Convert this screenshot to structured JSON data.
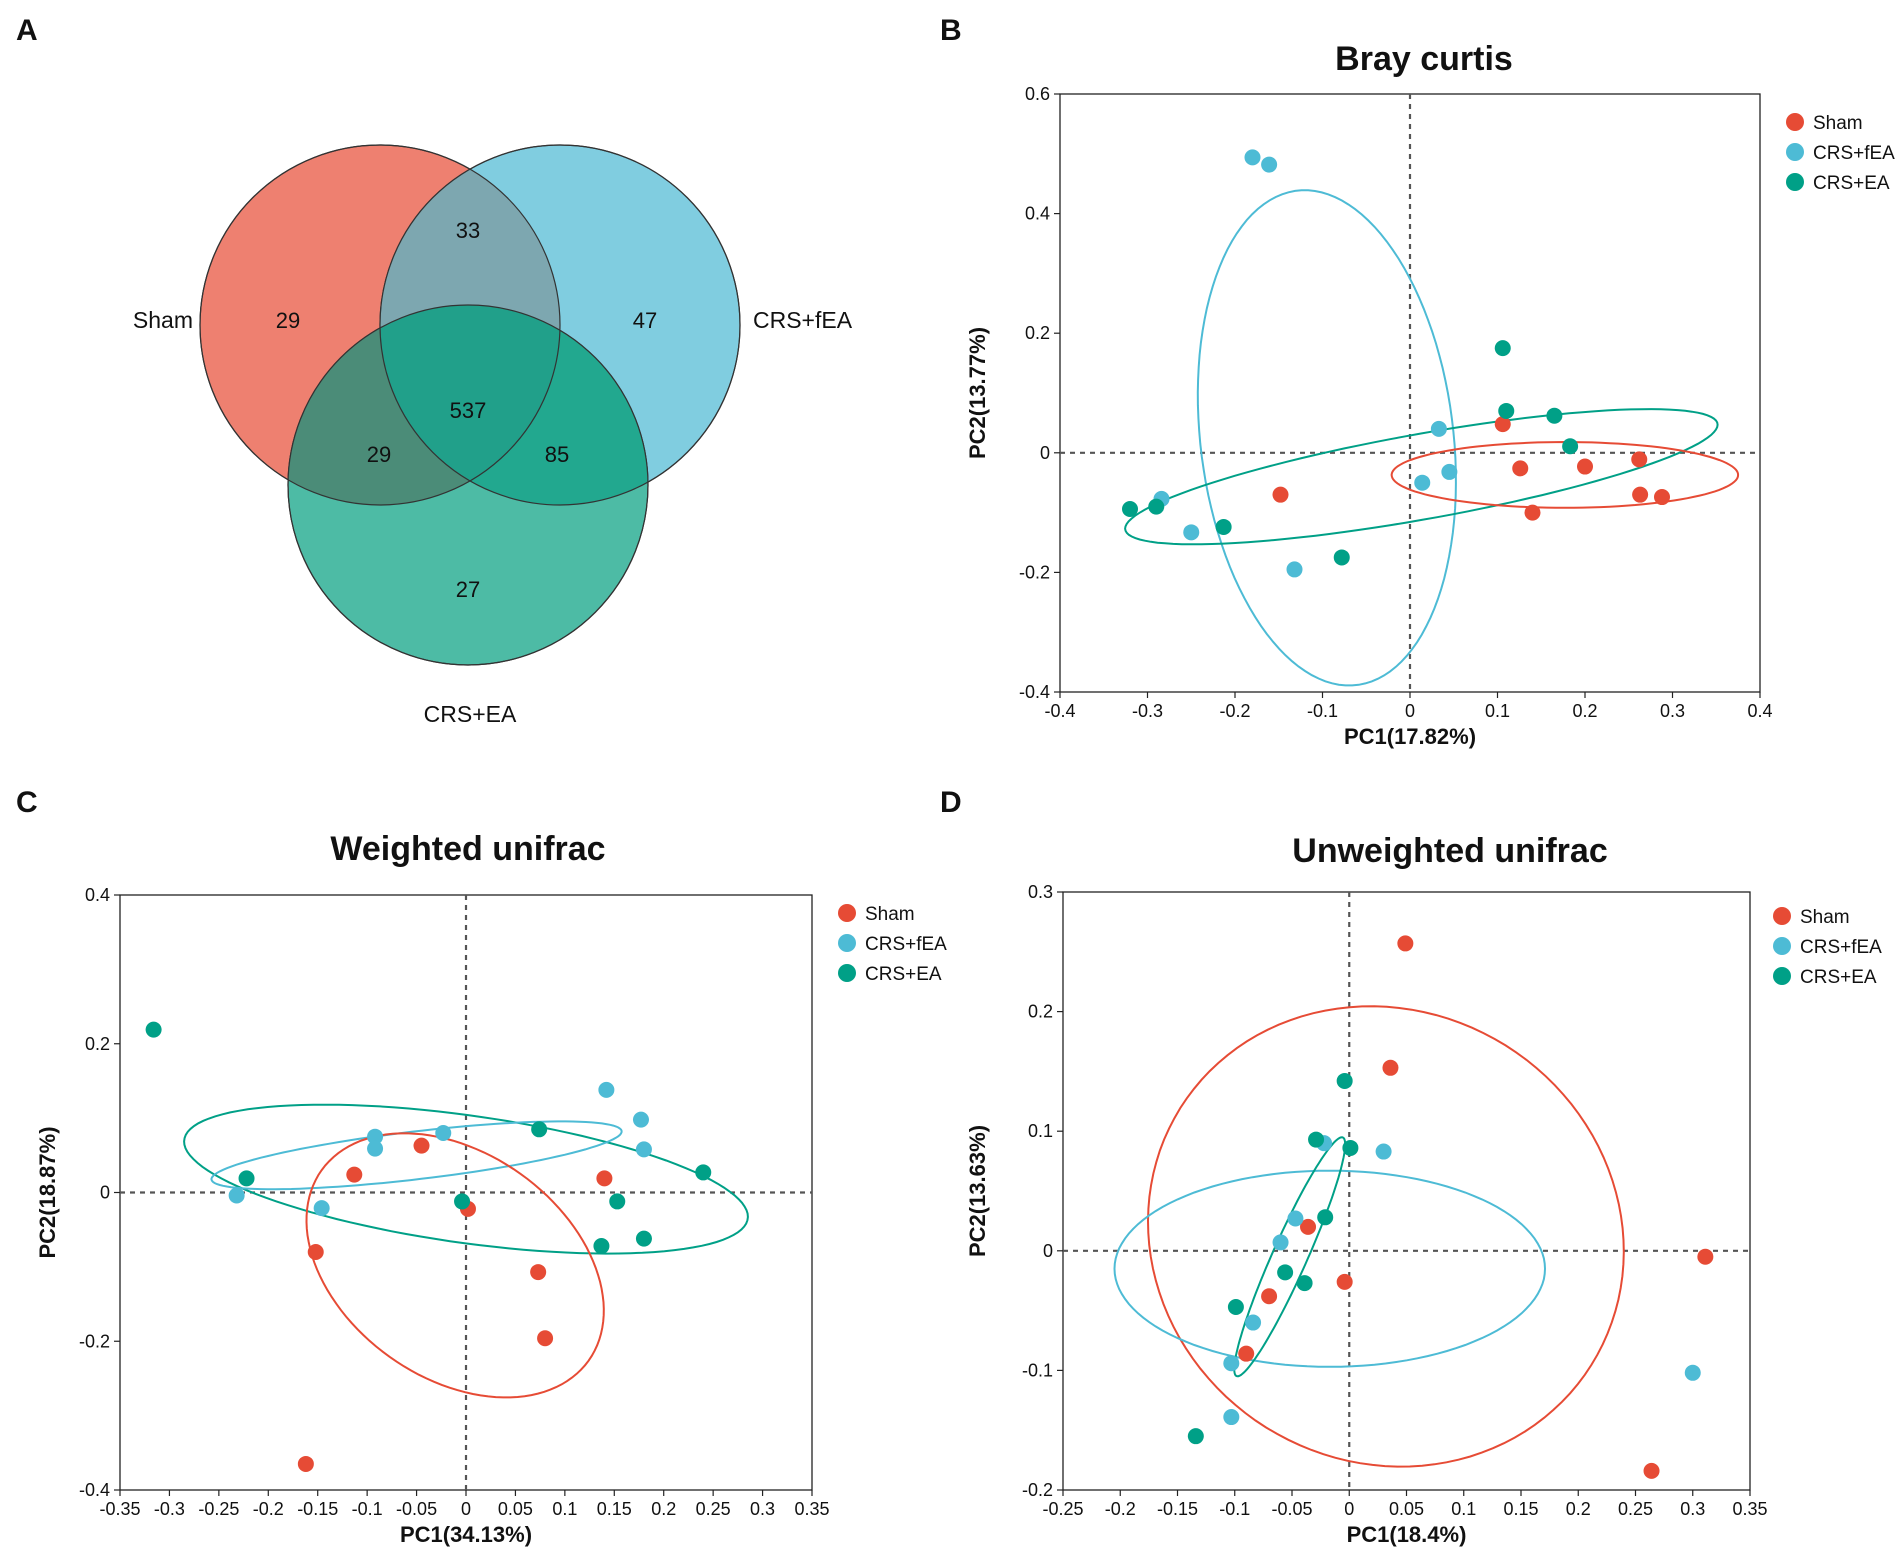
{
  "panels": {
    "a": "A",
    "b": "B",
    "c": "C",
    "d": "D"
  },
  "colors": {
    "sham": "#e64b35",
    "crs_fea": "#4dbbd5",
    "crs_ea": "#00a087",
    "venn_sham": "#ee8070",
    "venn_fea": "#80cde0",
    "venn_ea": "#4dbba5"
  },
  "venn": {
    "sets": {
      "sham": "Sham",
      "fea": "CRS+fEA",
      "ea": "CRS+EA"
    },
    "counts": {
      "sham_only": "29",
      "fea_only": "47",
      "ea_only": "27",
      "sham_fea": "33",
      "sham_ea": "29",
      "fea_ea": "85",
      "all": "537"
    }
  },
  "chart_data": [
    {
      "id": "bray",
      "type": "scatter",
      "title": "Bray curtis",
      "xlabel": "PC1(17.82%)",
      "ylabel": "PC2(13.77%)",
      "xlim": [
        -0.4,
        0.4
      ],
      "ylim": [
        -0.4,
        0.6
      ],
      "xticks": [
        "-0.4",
        "-0.3",
        "-0.2",
        "-0.1",
        "0",
        "0.1",
        "0.2",
        "0.3",
        "0.4"
      ],
      "yticks": [
        "-0.4",
        "-0.2",
        "0",
        "0.2",
        "0.4",
        "0.6"
      ],
      "legend": [
        "Sham",
        "CRS+fEA",
        "CRS+EA"
      ],
      "series": [
        {
          "name": "Sham",
          "color": "sham",
          "points": [
            [
              -0.148,
              -0.07
            ],
            [
              0.106,
              0.048
            ],
            [
              0.126,
              -0.026
            ],
            [
              0.14,
              -0.1
            ],
            [
              0.2,
              -0.023
            ],
            [
              0.262,
              -0.011
            ],
            [
              0.263,
              -0.07
            ],
            [
              0.288,
              -0.074
            ]
          ]
        },
        {
          "name": "CRS+fEA",
          "color": "crs_fea",
          "points": [
            [
              -0.18,
              0.494
            ],
            [
              -0.161,
              0.482
            ],
            [
              -0.284,
              -0.077
            ],
            [
              -0.25,
              -0.133
            ],
            [
              -0.132,
              -0.195
            ],
            [
              0.033,
              0.04
            ],
            [
              0.014,
              -0.05
            ],
            [
              0.045,
              -0.032
            ]
          ]
        },
        {
          "name": "CRS+EA",
          "color": "crs_ea",
          "points": [
            [
              -0.32,
              -0.094
            ],
            [
              -0.29,
              -0.09
            ],
            [
              -0.213,
              -0.124
            ],
            [
              -0.078,
              -0.175
            ],
            [
              0.106,
              0.175
            ],
            [
              0.11,
              0.07
            ],
            [
              0.165,
              0.062
            ],
            [
              0.183,
              0.011
            ]
          ]
        }
      ],
      "ellipses": [
        {
          "color": "crs_fea",
          "center": [
            -0.095,
            0.025
          ],
          "rx": 0.145,
          "ry": 0.415,
          "angle_deg": 4
        },
        {
          "color": "crs_ea",
          "center": [
            0.013,
            -0.04
          ],
          "rx": 0.35,
          "ry": 0.07,
          "angle_deg": 15
        },
        {
          "color": "sham",
          "center": [
            0.177,
            -0.037
          ],
          "rx": 0.198,
          "ry": 0.055,
          "angle_deg": 0
        }
      ]
    },
    {
      "id": "weighted",
      "type": "scatter",
      "title": "Weighted unifrac",
      "xlabel": "PC1(34.13%)",
      "ylabel": "PC2(18.87%)",
      "xlim": [
        -0.35,
        0.35
      ],
      "ylim": [
        -0.4,
        0.4
      ],
      "xticks": [
        "-0.35",
        "-0.3",
        "-0.25",
        "-0.2",
        "-0.15",
        "-0.1",
        "-0.05",
        "0",
        "0.05",
        "0.1",
        "0.15",
        "0.2",
        "0.25",
        "0.3",
        "0.35"
      ],
      "yticks": [
        "-0.4",
        "-0.2",
        "0",
        "0.2",
        "0.4"
      ],
      "legend": [
        "Sham",
        "CRS+fEA",
        "CRS+EA"
      ],
      "series": [
        {
          "name": "Sham",
          "color": "sham",
          "points": [
            [
              -0.162,
              -0.365
            ],
            [
              -0.152,
              -0.08
            ],
            [
              -0.113,
              0.024
            ],
            [
              -0.045,
              0.063
            ],
            [
              0.002,
              -0.022
            ],
            [
              0.073,
              -0.107
            ],
            [
              0.08,
              -0.196
            ],
            [
              0.14,
              0.019
            ]
          ]
        },
        {
          "name": "CRS+fEA",
          "color": "crs_fea",
          "points": [
            [
              -0.232,
              -0.004
            ],
            [
              -0.146,
              -0.021
            ],
            [
              -0.092,
              0.075
            ],
            [
              -0.092,
              0.059
            ],
            [
              -0.023,
              0.08
            ],
            [
              0.142,
              0.138
            ],
            [
              0.177,
              0.098
            ],
            [
              0.18,
              0.058
            ]
          ]
        },
        {
          "name": "CRS+EA",
          "color": "crs_ea",
          "points": [
            [
              -0.316,
              0.219
            ],
            [
              -0.222,
              0.019
            ],
            [
              -0.004,
              -0.012
            ],
            [
              0.074,
              0.085
            ],
            [
              0.137,
              -0.072
            ],
            [
              0.153,
              -0.012
            ],
            [
              0.18,
              -0.062
            ],
            [
              0.24,
              0.027
            ]
          ]
        }
      ],
      "ellipses": [
        {
          "color": "crs_ea",
          "center": [
            0.0,
            0.018
          ],
          "rx": 0.29,
          "ry": 0.085,
          "angle_deg": -11
        },
        {
          "color": "crs_fea",
          "center": [
            -0.05,
            0.05
          ],
          "rx": 0.21,
          "ry": 0.032,
          "angle_deg": 9
        },
        {
          "color": "sham",
          "center": [
            -0.011,
            -0.098
          ],
          "rx": 0.13,
          "ry": 0.193,
          "angle_deg": 32
        }
      ]
    },
    {
      "id": "unweighted",
      "type": "scatter",
      "title": "Unweighted unifrac",
      "xlabel": "PC1(18.4%)",
      "ylabel": "PC2(13.63%)",
      "xlim": [
        -0.25,
        0.35
      ],
      "ylim": [
        -0.2,
        0.3
      ],
      "xticks": [
        "-0.25",
        "-0.2",
        "-0.15",
        "-0.1",
        "-0.05",
        "0",
        "0.05",
        "0.1",
        "0.15",
        "0.2",
        "0.25",
        "0.3",
        "0.35"
      ],
      "yticks": [
        "-0.2",
        "-0.1",
        "0",
        "0.1",
        "0.2",
        "0.3"
      ],
      "legend": [
        "Sham",
        "CRS+fEA",
        "CRS+EA"
      ],
      "series": [
        {
          "name": "Sham",
          "color": "sham",
          "points": [
            [
              0.049,
              0.257
            ],
            [
              0.036,
              0.153
            ],
            [
              -0.036,
              0.02
            ],
            [
              -0.07,
              -0.038
            ],
            [
              -0.09,
              -0.086
            ],
            [
              -0.004,
              -0.026
            ],
            [
              0.264,
              -0.184
            ],
            [
              0.311,
              -0.005
            ]
          ]
        },
        {
          "name": "CRS+fEA",
          "color": "crs_fea",
          "points": [
            [
              -0.022,
              0.09
            ],
            [
              0.03,
              0.083
            ],
            [
              -0.047,
              0.027
            ],
            [
              -0.06,
              0.007
            ],
            [
              -0.084,
              -0.06
            ],
            [
              -0.103,
              -0.094
            ],
            [
              -0.103,
              -0.139
            ],
            [
              0.3,
              -0.102
            ]
          ]
        },
        {
          "name": "CRS+EA",
          "color": "crs_ea",
          "points": [
            [
              -0.004,
              0.142
            ],
            [
              -0.029,
              0.093
            ],
            [
              0.001,
              0.086
            ],
            [
              -0.021,
              0.028
            ],
            [
              -0.056,
              -0.018
            ],
            [
              -0.039,
              -0.027
            ],
            [
              -0.099,
              -0.047
            ],
            [
              -0.134,
              -0.155
            ]
          ]
        }
      ],
      "ellipses": [
        {
          "color": "sham",
          "center": [
            0.032,
            0.012
          ],
          "rx": 0.21,
          "ry": 0.19,
          "angle_deg": -20
        },
        {
          "color": "crs_fea",
          "center": [
            -0.017,
            -0.015
          ],
          "rx": 0.188,
          "ry": 0.082,
          "angle_deg": 0
        },
        {
          "color": "crs_ea",
          "center": [
            -0.052,
            -0.005
          ],
          "rx": 0.11,
          "ry": 0.015,
          "angle_deg": 65
        }
      ]
    }
  ]
}
